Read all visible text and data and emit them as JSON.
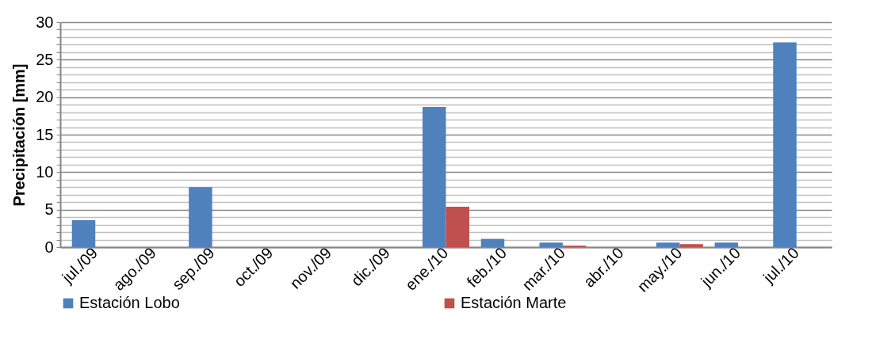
{
  "chart_data": {
    "type": "bar",
    "ylabel": "Precipitación [mm]",
    "categories": [
      "jul./09",
      "ago./09",
      "sep./09",
      "oct./09",
      "nov./09",
      "dic./09",
      "ene./10",
      "feb./10",
      "mar./10",
      "abr./10",
      "may./10",
      "jun./10",
      "jul./10"
    ],
    "series": [
      {
        "name": "Estación Lobo",
        "color": "#4f81bd",
        "values": [
          3.6,
          0,
          8,
          0,
          0,
          0,
          18.7,
          1.1,
          0.6,
          0,
          0.6,
          0.6,
          27.3
        ]
      },
      {
        "name": "Estación Marte",
        "color": "#c0504d",
        "values": [
          0,
          0,
          0,
          0,
          0,
          0,
          5.4,
          0,
          0.2,
          0,
          0.4,
          0,
          0
        ]
      }
    ],
    "ylim": [
      0,
      30
    ],
    "yticks": [
      0,
      {
        "value": 1,
        "label": null
      },
      {
        "value": 2,
        "label": null
      },
      {
        "value": 3,
        "label": null
      },
      {
        "value": 4,
        "label": null
      },
      5,
      {
        "value": 6,
        "label": null
      },
      {
        "value": 7,
        "label": null
      },
      {
        "value": 8,
        "label": null
      },
      {
        "value": 9,
        "label": null
      },
      10,
      {
        "value": 11,
        "label": null
      },
      {
        "value": 12,
        "label": null
      },
      {
        "value": 13,
        "label": null
      },
      {
        "value": 14,
        "label": null
      },
      15,
      {
        "value": 16,
        "label": null
      },
      {
        "value": 17,
        "label": null
      },
      {
        "value": 18,
        "label": null
      },
      {
        "value": 19,
        "label": null
      },
      20,
      {
        "value": 21,
        "label": null
      },
      {
        "value": 22,
        "label": null
      },
      {
        "value": 23,
        "label": null
      },
      {
        "value": 24,
        "label": null
      },
      25,
      {
        "value": 26,
        "label": null
      },
      {
        "value": 27,
        "label": null
      },
      {
        "value": 28,
        "label": null
      },
      {
        "value": 29,
        "label": null
      },
      30
    ],
    "grid": "y",
    "legend": "bottom"
  }
}
